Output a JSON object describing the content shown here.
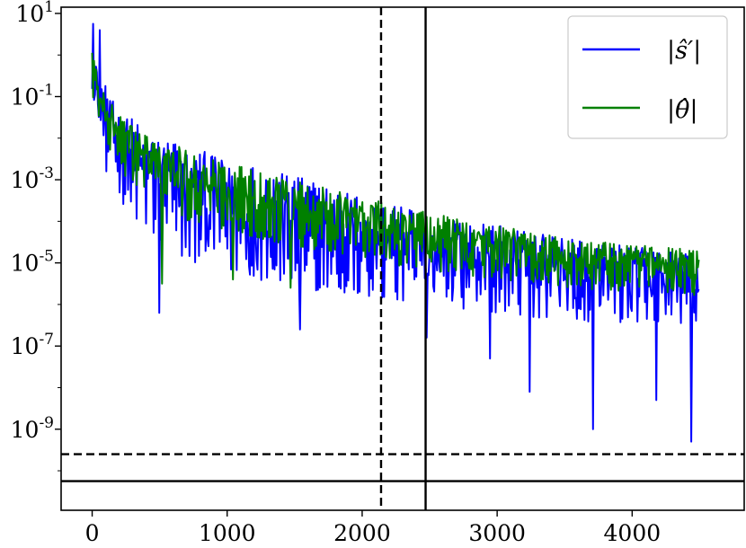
{
  "chart_data": {
    "type": "line",
    "title": "",
    "xlabel": "",
    "ylabel": "",
    "xlim": [
      -230,
      4830
    ],
    "y_scale": "log",
    "ylim_log10": [
      -10.95,
      1.15
    ],
    "x_ticks": [
      {
        "value": 0,
        "label": "0"
      },
      {
        "value": 1000,
        "label": "1000"
      },
      {
        "value": 2000,
        "label": "2000"
      },
      {
        "value": 3000,
        "label": "3000"
      },
      {
        "value": 4000,
        "label": "4000"
      }
    ],
    "y_ticks": [
      {
        "exp": 1,
        "base": "10",
        "power": "1"
      },
      {
        "exp": -1,
        "base": "10",
        "power": "-1"
      },
      {
        "exp": -3,
        "base": "10",
        "power": "-3"
      },
      {
        "exp": -5,
        "base": "10",
        "power": "-5"
      },
      {
        "exp": -7,
        "base": "10",
        "power": "-7"
      },
      {
        "exp": -9,
        "base": "10",
        "power": "-9"
      }
    ],
    "grid": false,
    "legend_position": "top-right",
    "series": [
      {
        "name": "|ŝ′|",
        "color": "#0000ff",
        "x_range": [
          0,
          4500
        ],
        "upper_envelope_log10": [
          [
            0,
            0.6
          ],
          [
            40,
            -0.3
          ],
          [
            150,
            -1.1
          ],
          [
            400,
            -1.8
          ],
          [
            800,
            -2.3
          ],
          [
            1500,
            -2.9
          ],
          [
            2100,
            -3.5
          ],
          [
            2500,
            -3.8
          ],
          [
            3500,
            -4.4
          ],
          [
            4500,
            -4.8
          ]
        ],
        "lower_envelope_log10": [
          [
            0,
            -1.3
          ],
          [
            100,
            -2.8
          ],
          [
            300,
            -4.0
          ],
          [
            700,
            -5.0
          ],
          [
            1500,
            -5.6
          ],
          [
            2500,
            -6.0
          ],
          [
            3500,
            -6.4
          ],
          [
            4500,
            -6.5
          ]
        ],
        "spikes": [
          [
            5,
            0.75
          ],
          [
            55,
            0.6
          ],
          [
            500,
            -6.2
          ],
          [
            1540,
            -6.6
          ],
          [
            2480,
            -6.8
          ],
          [
            2950,
            -7.3
          ],
          [
            3240,
            -8.1
          ],
          [
            3710,
            -9.0
          ],
          [
            4180,
            -8.3
          ],
          [
            4440,
            -9.3
          ]
        ]
      },
      {
        "name": "|θ̂|",
        "color": "#008000",
        "x_range": [
          0,
          4500
        ],
        "upper_envelope_log10": [
          [
            0,
            0.3
          ],
          [
            40,
            -0.5
          ],
          [
            150,
            -1.2
          ],
          [
            400,
            -1.9
          ],
          [
            800,
            -2.4
          ],
          [
            1500,
            -3.0
          ],
          [
            2100,
            -3.5
          ],
          [
            2500,
            -3.8
          ],
          [
            3500,
            -4.4
          ],
          [
            4500,
            -4.7
          ]
        ],
        "lower_envelope_log10": [
          [
            0,
            -1.0
          ],
          [
            100,
            -2.2
          ],
          [
            300,
            -3.2
          ],
          [
            700,
            -4.0
          ],
          [
            1500,
            -4.6
          ],
          [
            2500,
            -5.2
          ],
          [
            3500,
            -5.6
          ],
          [
            4500,
            -5.8
          ]
        ],
        "spikes": [
          [
            520,
            -5.5
          ],
          [
            1040,
            -5.4
          ],
          [
            1470,
            -5.6
          ]
        ]
      }
    ],
    "reference_lines": [
      {
        "orientation": "vertical",
        "x": 2140,
        "style": "dashed",
        "color": "#000000"
      },
      {
        "orientation": "vertical",
        "x": 2470,
        "style": "solid",
        "color": "#000000"
      },
      {
        "orientation": "horizontal",
        "y_log10": -9.6,
        "style": "dashed",
        "color": "#000000"
      },
      {
        "orientation": "horizontal",
        "y_log10": -10.25,
        "style": "solid",
        "color": "#000000"
      }
    ]
  }
}
